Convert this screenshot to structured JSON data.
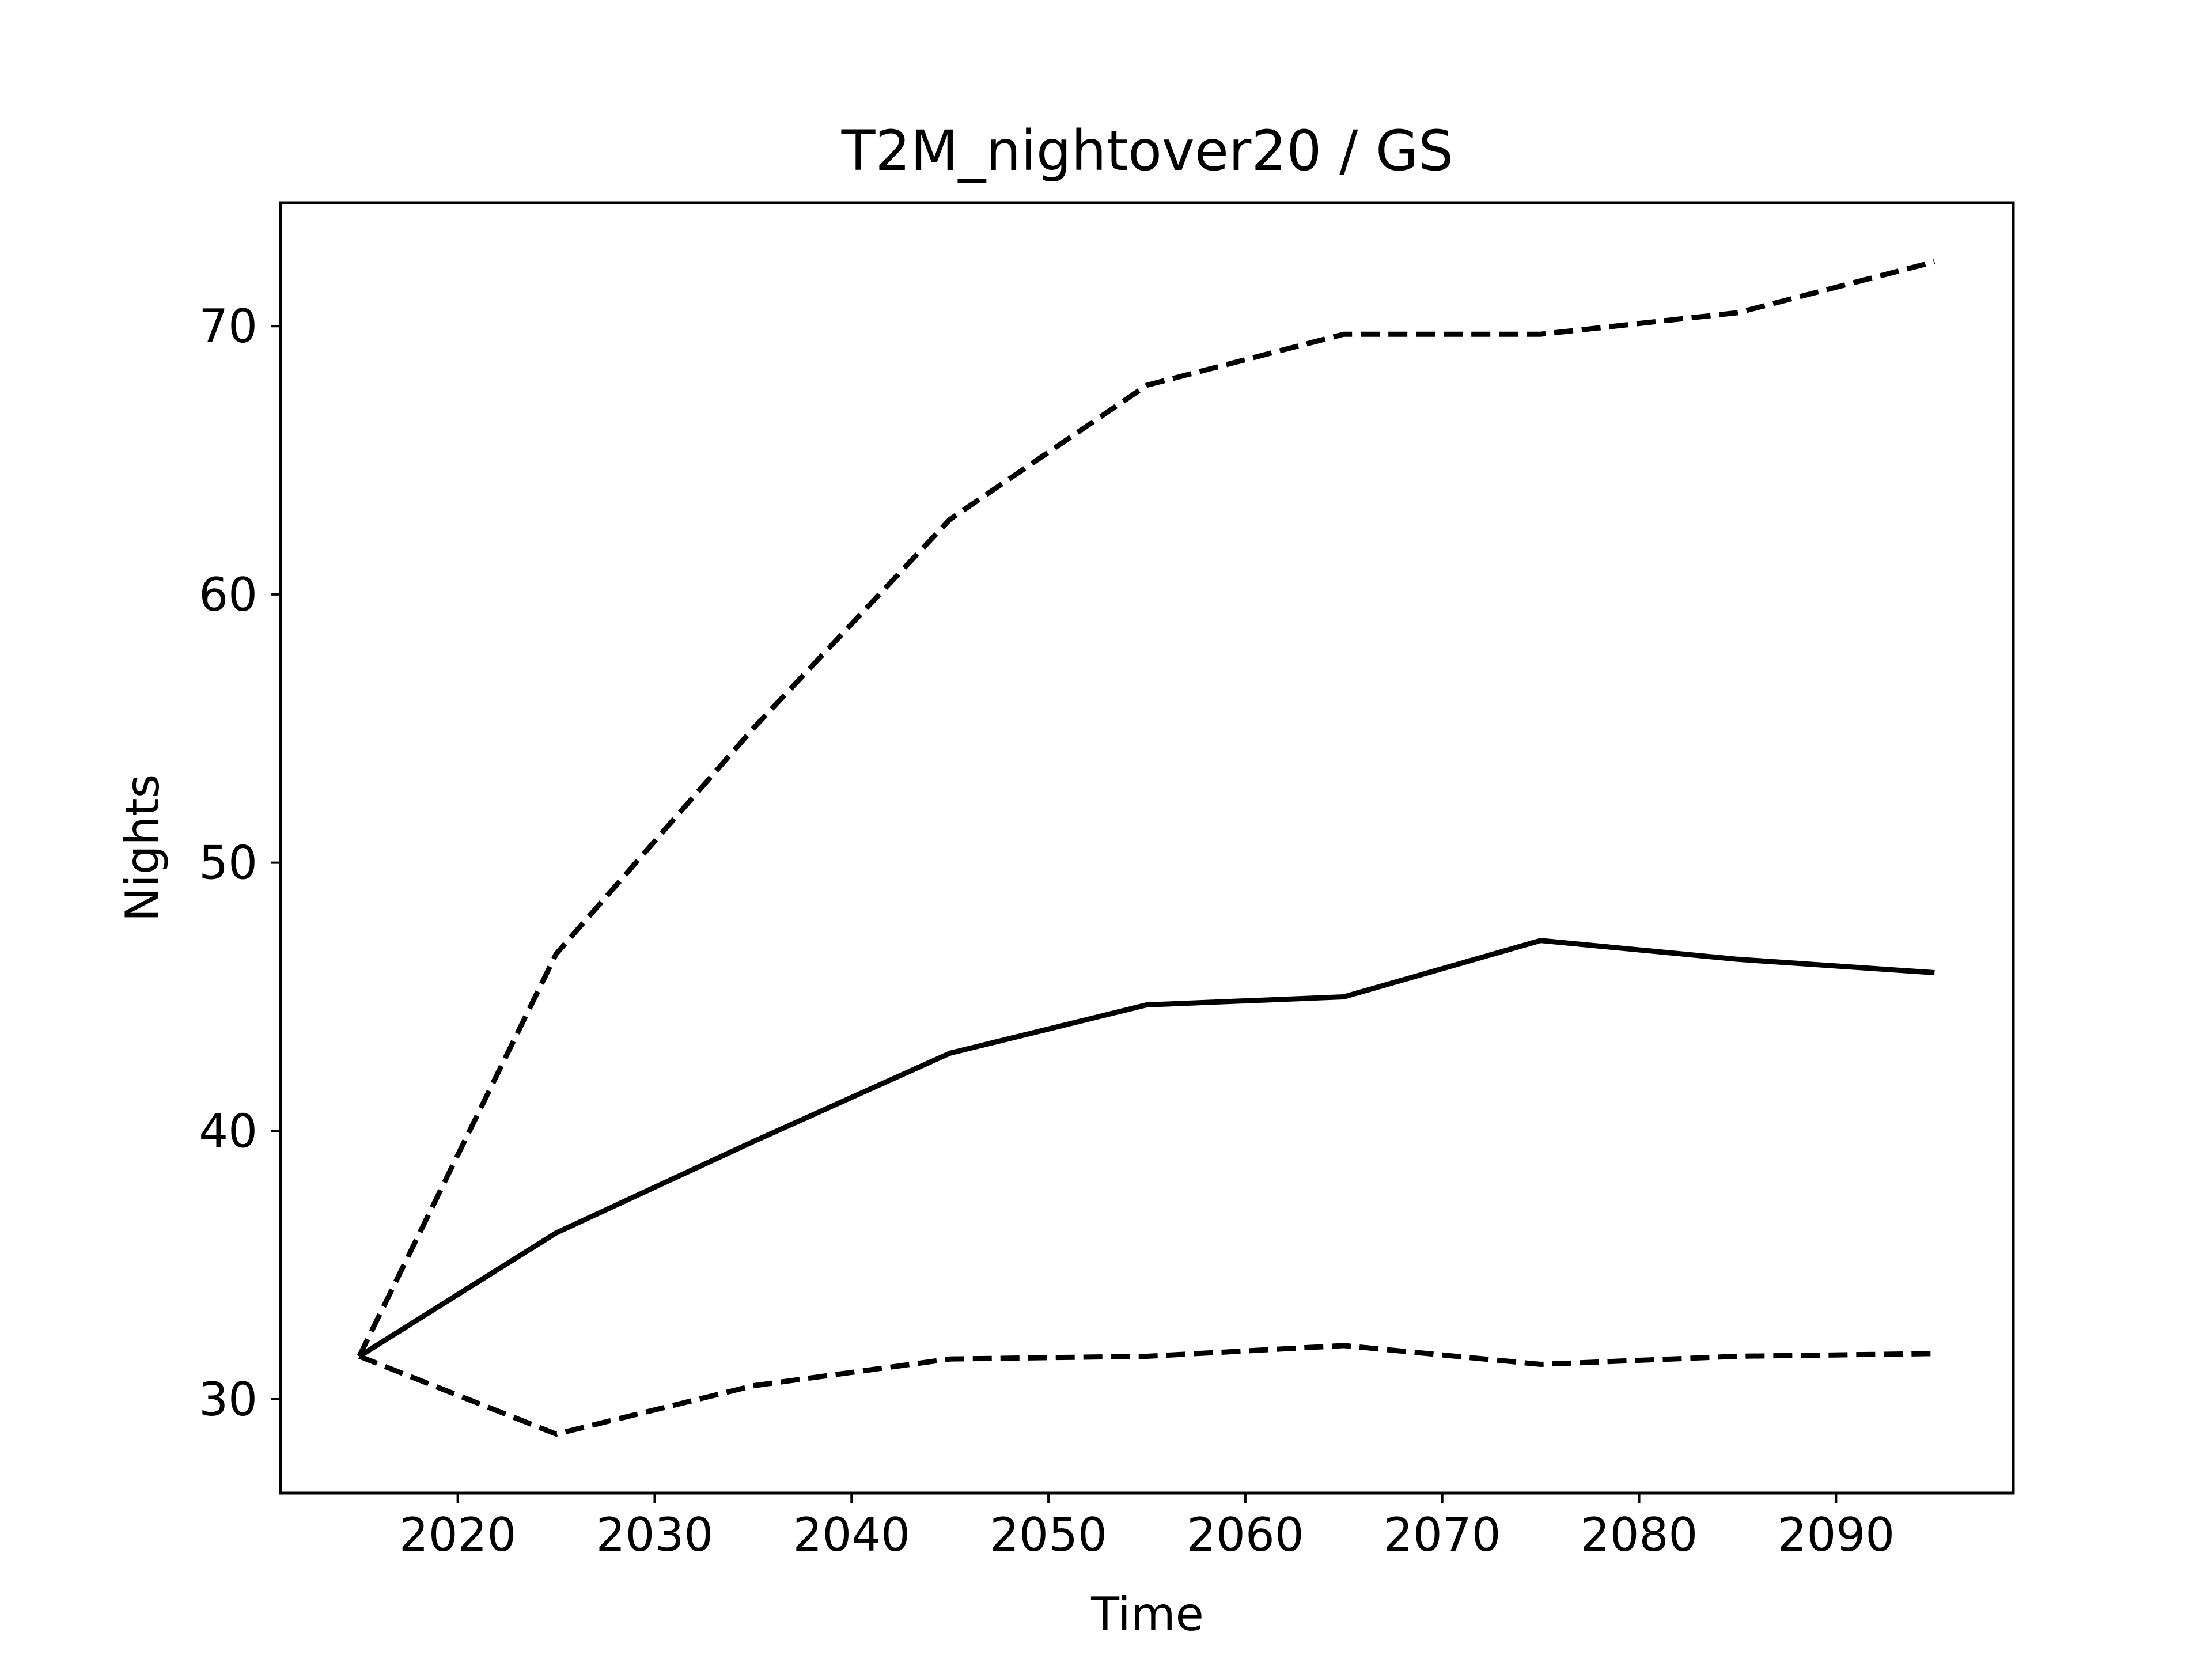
{
  "chart_data": {
    "type": "line",
    "title": "T2M_nightover20 / GS",
    "xlabel": "Time",
    "ylabel": "Nights",
    "xlim": [
      2011,
      2099
    ],
    "ylim": [
      26.5,
      74.6
    ],
    "x_ticks": [
      2020,
      2030,
      2040,
      2050,
      2060,
      2070,
      2080,
      2090
    ],
    "y_ticks": [
      30,
      40,
      50,
      60,
      70
    ],
    "x": [
      2015,
      2025,
      2035,
      2045,
      2055,
      2065,
      2075,
      2085,
      2095
    ],
    "grid": false,
    "legend": "none",
    "series": [
      {
        "style": "solid",
        "color": "#000000",
        "values": [
          31.6,
          36.2,
          39.6,
          42.9,
          44.7,
          45.0,
          47.1,
          46.4,
          45.9
        ]
      },
      {
        "style": "dashed",
        "color": "#000000",
        "values": [
          31.6,
          46.6,
          55.0,
          62.8,
          67.8,
          69.7,
          69.7,
          70.5,
          72.4
        ]
      },
      {
        "style": "dashed",
        "color": "#000000",
        "values": [
          31.6,
          28.7,
          30.5,
          31.5,
          31.6,
          32.0,
          31.3,
          31.6,
          31.7
        ]
      }
    ]
  }
}
